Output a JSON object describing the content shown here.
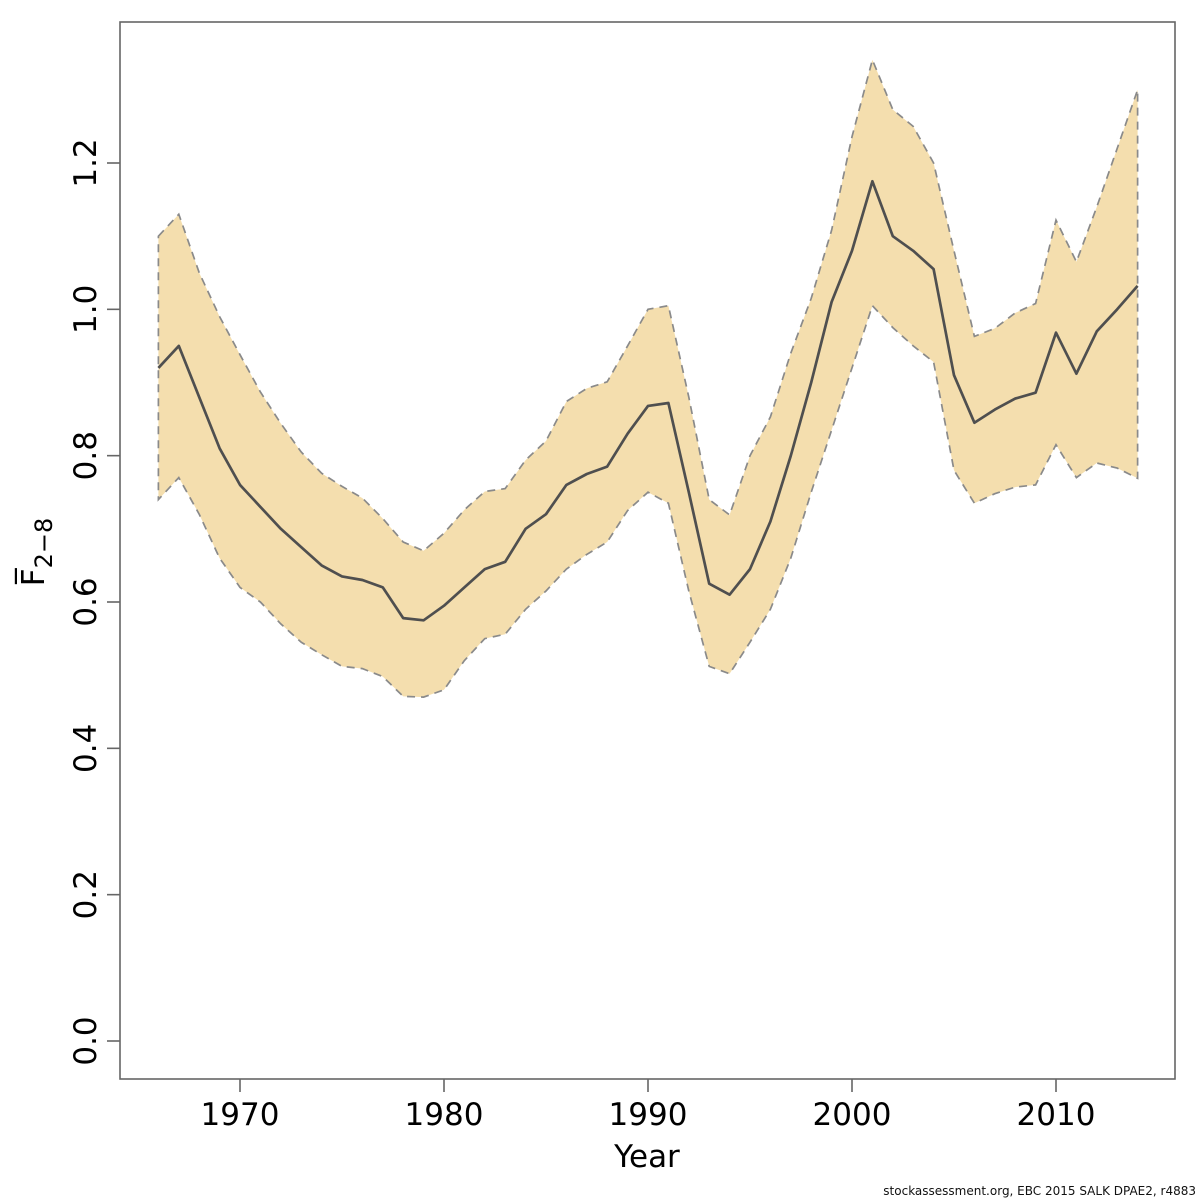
{
  "page": {
    "background": "#ffffff"
  },
  "footer": {
    "credit": "stockassessment.org, EBC 2015 SALK DPAE2, r4883"
  },
  "chart_data": {
    "type": "line",
    "title": "",
    "xlabel": "Year",
    "ylabel": "F̅",
    "ylabel_subscript": "2−8",
    "x_ticks": [
      1970,
      1980,
      1990,
      2000,
      2010
    ],
    "y_ticks": [
      "0.0",
      "0.2",
      "0.4",
      "0.6",
      "0.8",
      "1.0",
      "1.2"
    ],
    "xlim": [
      1964.1,
      2015.8
    ],
    "ylim": [
      -0.05,
      1.39
    ],
    "grid": false,
    "legend": "none",
    "colors": {
      "band_fill": "#f4deae",
      "band_border": "#8a8a8a",
      "line": "#4f4f4f",
      "box": "#666666"
    },
    "years": [
      1966,
      1967,
      1968,
      1969,
      1970,
      1971,
      1972,
      1973,
      1974,
      1975,
      1976,
      1977,
      1978,
      1979,
      1980,
      1981,
      1982,
      1983,
      1984,
      1985,
      1986,
      1987,
      1988,
      1989,
      1990,
      1991,
      1992,
      1993,
      1994,
      1995,
      1996,
      1997,
      1998,
      1999,
      2000,
      2001,
      2002,
      2003,
      2004,
      2005,
      2006,
      2007,
      2008,
      2009,
      2010,
      2011,
      2012,
      2013,
      2014
    ],
    "series": [
      {
        "name": "F estimate",
        "style": "solid",
        "values": [
          0.92,
          0.95,
          0.88,
          0.81,
          0.76,
          0.73,
          0.7,
          0.675,
          0.65,
          0.635,
          0.63,
          0.62,
          0.578,
          0.575,
          0.595,
          0.62,
          0.645,
          0.655,
          0.7,
          0.72,
          0.76,
          0.775,
          0.785,
          0.83,
          0.868,
          0.872,
          0.75,
          0.625,
          0.61,
          0.645,
          0.71,
          0.8,
          0.9,
          1.01,
          1.08,
          1.175,
          1.1,
          1.08,
          1.055,
          0.91,
          0.845,
          0.863,
          0.878,
          0.886,
          0.968,
          0.912,
          0.97,
          1.0,
          1.032
        ]
      },
      {
        "name": "CI lower",
        "style": "dashed",
        "values": [
          0.74,
          0.77,
          0.72,
          0.66,
          0.62,
          0.6,
          0.57,
          0.545,
          0.528,
          0.512,
          0.509,
          0.498,
          0.471,
          0.47,
          0.48,
          0.52,
          0.55,
          0.556,
          0.59,
          0.615,
          0.645,
          0.665,
          0.682,
          0.725,
          0.75,
          0.735,
          0.615,
          0.512,
          0.502,
          0.545,
          0.59,
          0.66,
          0.75,
          0.835,
          0.92,
          1.005,
          0.975,
          0.95,
          0.928,
          0.78,
          0.735,
          0.748,
          0.757,
          0.76,
          0.815,
          0.77,
          0.79,
          0.783,
          0.769
        ]
      },
      {
        "name": "CI upper",
        "style": "dashed",
        "values": [
          1.1,
          1.13,
          1.05,
          0.99,
          0.938,
          0.887,
          0.844,
          0.805,
          0.776,
          0.758,
          0.742,
          0.714,
          0.682,
          0.67,
          0.694,
          0.726,
          0.751,
          0.755,
          0.794,
          0.82,
          0.874,
          0.892,
          0.901,
          0.95,
          1.0,
          1.005,
          0.88,
          0.74,
          0.719,
          0.8,
          0.853,
          0.94,
          1.015,
          1.108,
          1.236,
          1.341,
          1.273,
          1.25,
          1.2,
          1.08,
          0.963,
          0.974,
          0.995,
          1.008,
          1.122,
          1.065,
          1.14,
          1.22,
          1.3
        ]
      }
    ]
  }
}
